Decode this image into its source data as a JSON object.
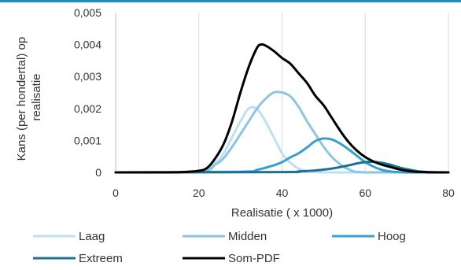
{
  "chart_data": {
    "type": "line",
    "xlabel": "Realisatie ( x 1000)",
    "ylabel_lines": [
      "Kans (per hondertal) op",
      "realisatie"
    ],
    "xlim": [
      0,
      80
    ],
    "ylim": [
      0,
      0.005
    ],
    "x_ticks": [
      0,
      20,
      40,
      60,
      80
    ],
    "x_tick_labels": [
      "0",
      "20",
      "40",
      "60",
      "80"
    ],
    "y_ticks": [
      0,
      0.001,
      0.002,
      0.003,
      0.004,
      0.005
    ],
    "y_tick_labels": [
      "0",
      "0,001",
      "0,002",
      "0,003",
      "0,004",
      "0,005"
    ],
    "grid": "vertical",
    "legend_position": "bottom",
    "series": [
      {
        "name": "Laag",
        "color": "#bde0f2",
        "x": [
          0,
          10,
          20,
          24,
          26,
          28,
          30,
          32,
          34,
          36,
          38,
          40,
          42,
          44,
          46,
          50,
          60,
          80
        ],
        "y": [
          0,
          0,
          2e-05,
          0.0003,
          0.0006,
          0.0011,
          0.0016,
          0.002,
          0.00198,
          0.0016,
          0.0011,
          0.0006,
          0.0003,
          0.00012,
          4e-05,
          0,
          0,
          0
        ]
      },
      {
        "name": "Midden",
        "color": "#8cc6e3",
        "x": [
          0,
          20,
          24,
          26,
          28,
          30,
          32,
          34,
          36,
          38,
          40,
          42,
          44,
          46,
          48,
          50,
          52,
          54,
          56,
          60,
          80
        ],
        "y": [
          0,
          3e-05,
          0.00025,
          0.00045,
          0.0008,
          0.0012,
          0.0016,
          0.002,
          0.0023,
          0.0025,
          0.0025,
          0.00238,
          0.00205,
          0.0016,
          0.0012,
          0.0008,
          0.00048,
          0.00025,
          0.0001,
          0,
          0
        ]
      },
      {
        "name": "Hoog",
        "color": "#3a9fd0",
        "x": [
          0,
          30,
          34,
          38,
          40,
          42,
          44,
          46,
          48,
          50,
          52,
          54,
          56,
          58,
          60,
          62,
          64,
          66,
          70,
          80
        ],
        "y": [
          0,
          2e-05,
          8e-05,
          0.00022,
          0.00032,
          0.00047,
          0.0006,
          0.00078,
          0.00098,
          0.00106,
          0.00103,
          0.0009,
          0.00072,
          0.00052,
          0.00032,
          0.00018,
          8e-05,
          3e-05,
          0,
          0
        ]
      },
      {
        "name": "Extreem",
        "color": "#1c6f95",
        "x": [
          0,
          40,
          44,
          48,
          52,
          56,
          58,
          60,
          62,
          64,
          66,
          68,
          70,
          72,
          74,
          80
        ],
        "y": [
          0,
          1e-05,
          3e-05,
          6e-05,
          0.00012,
          0.00022,
          0.00028,
          0.00032,
          0.00033,
          0.0003,
          0.00024,
          0.00016,
          0.0001,
          5e-05,
          2e-05,
          0
        ]
      },
      {
        "name": "Som-PDF",
        "color": "#000000",
        "x": [
          0,
          10,
          16,
          20,
          22,
          24,
          26,
          28,
          30,
          32,
          34,
          35,
          36,
          38,
          40,
          42,
          44,
          46,
          48,
          50,
          52,
          54,
          56,
          58,
          60,
          62,
          64,
          66,
          68,
          70,
          72,
          74,
          76,
          78,
          80
        ],
        "y": [
          0,
          0,
          1e-05,
          5e-05,
          0.00014,
          0.00045,
          0.0009,
          0.0016,
          0.0025,
          0.0033,
          0.0039,
          0.004,
          0.00397,
          0.0038,
          0.00358,
          0.0034,
          0.0031,
          0.0028,
          0.0024,
          0.0021,
          0.0017,
          0.0013,
          0.00095,
          0.00068,
          0.00048,
          0.00034,
          0.00024,
          0.00017,
          0.0001,
          5e-05,
          2e-05,
          1e-05,
          0,
          0,
          0
        ]
      }
    ]
  }
}
